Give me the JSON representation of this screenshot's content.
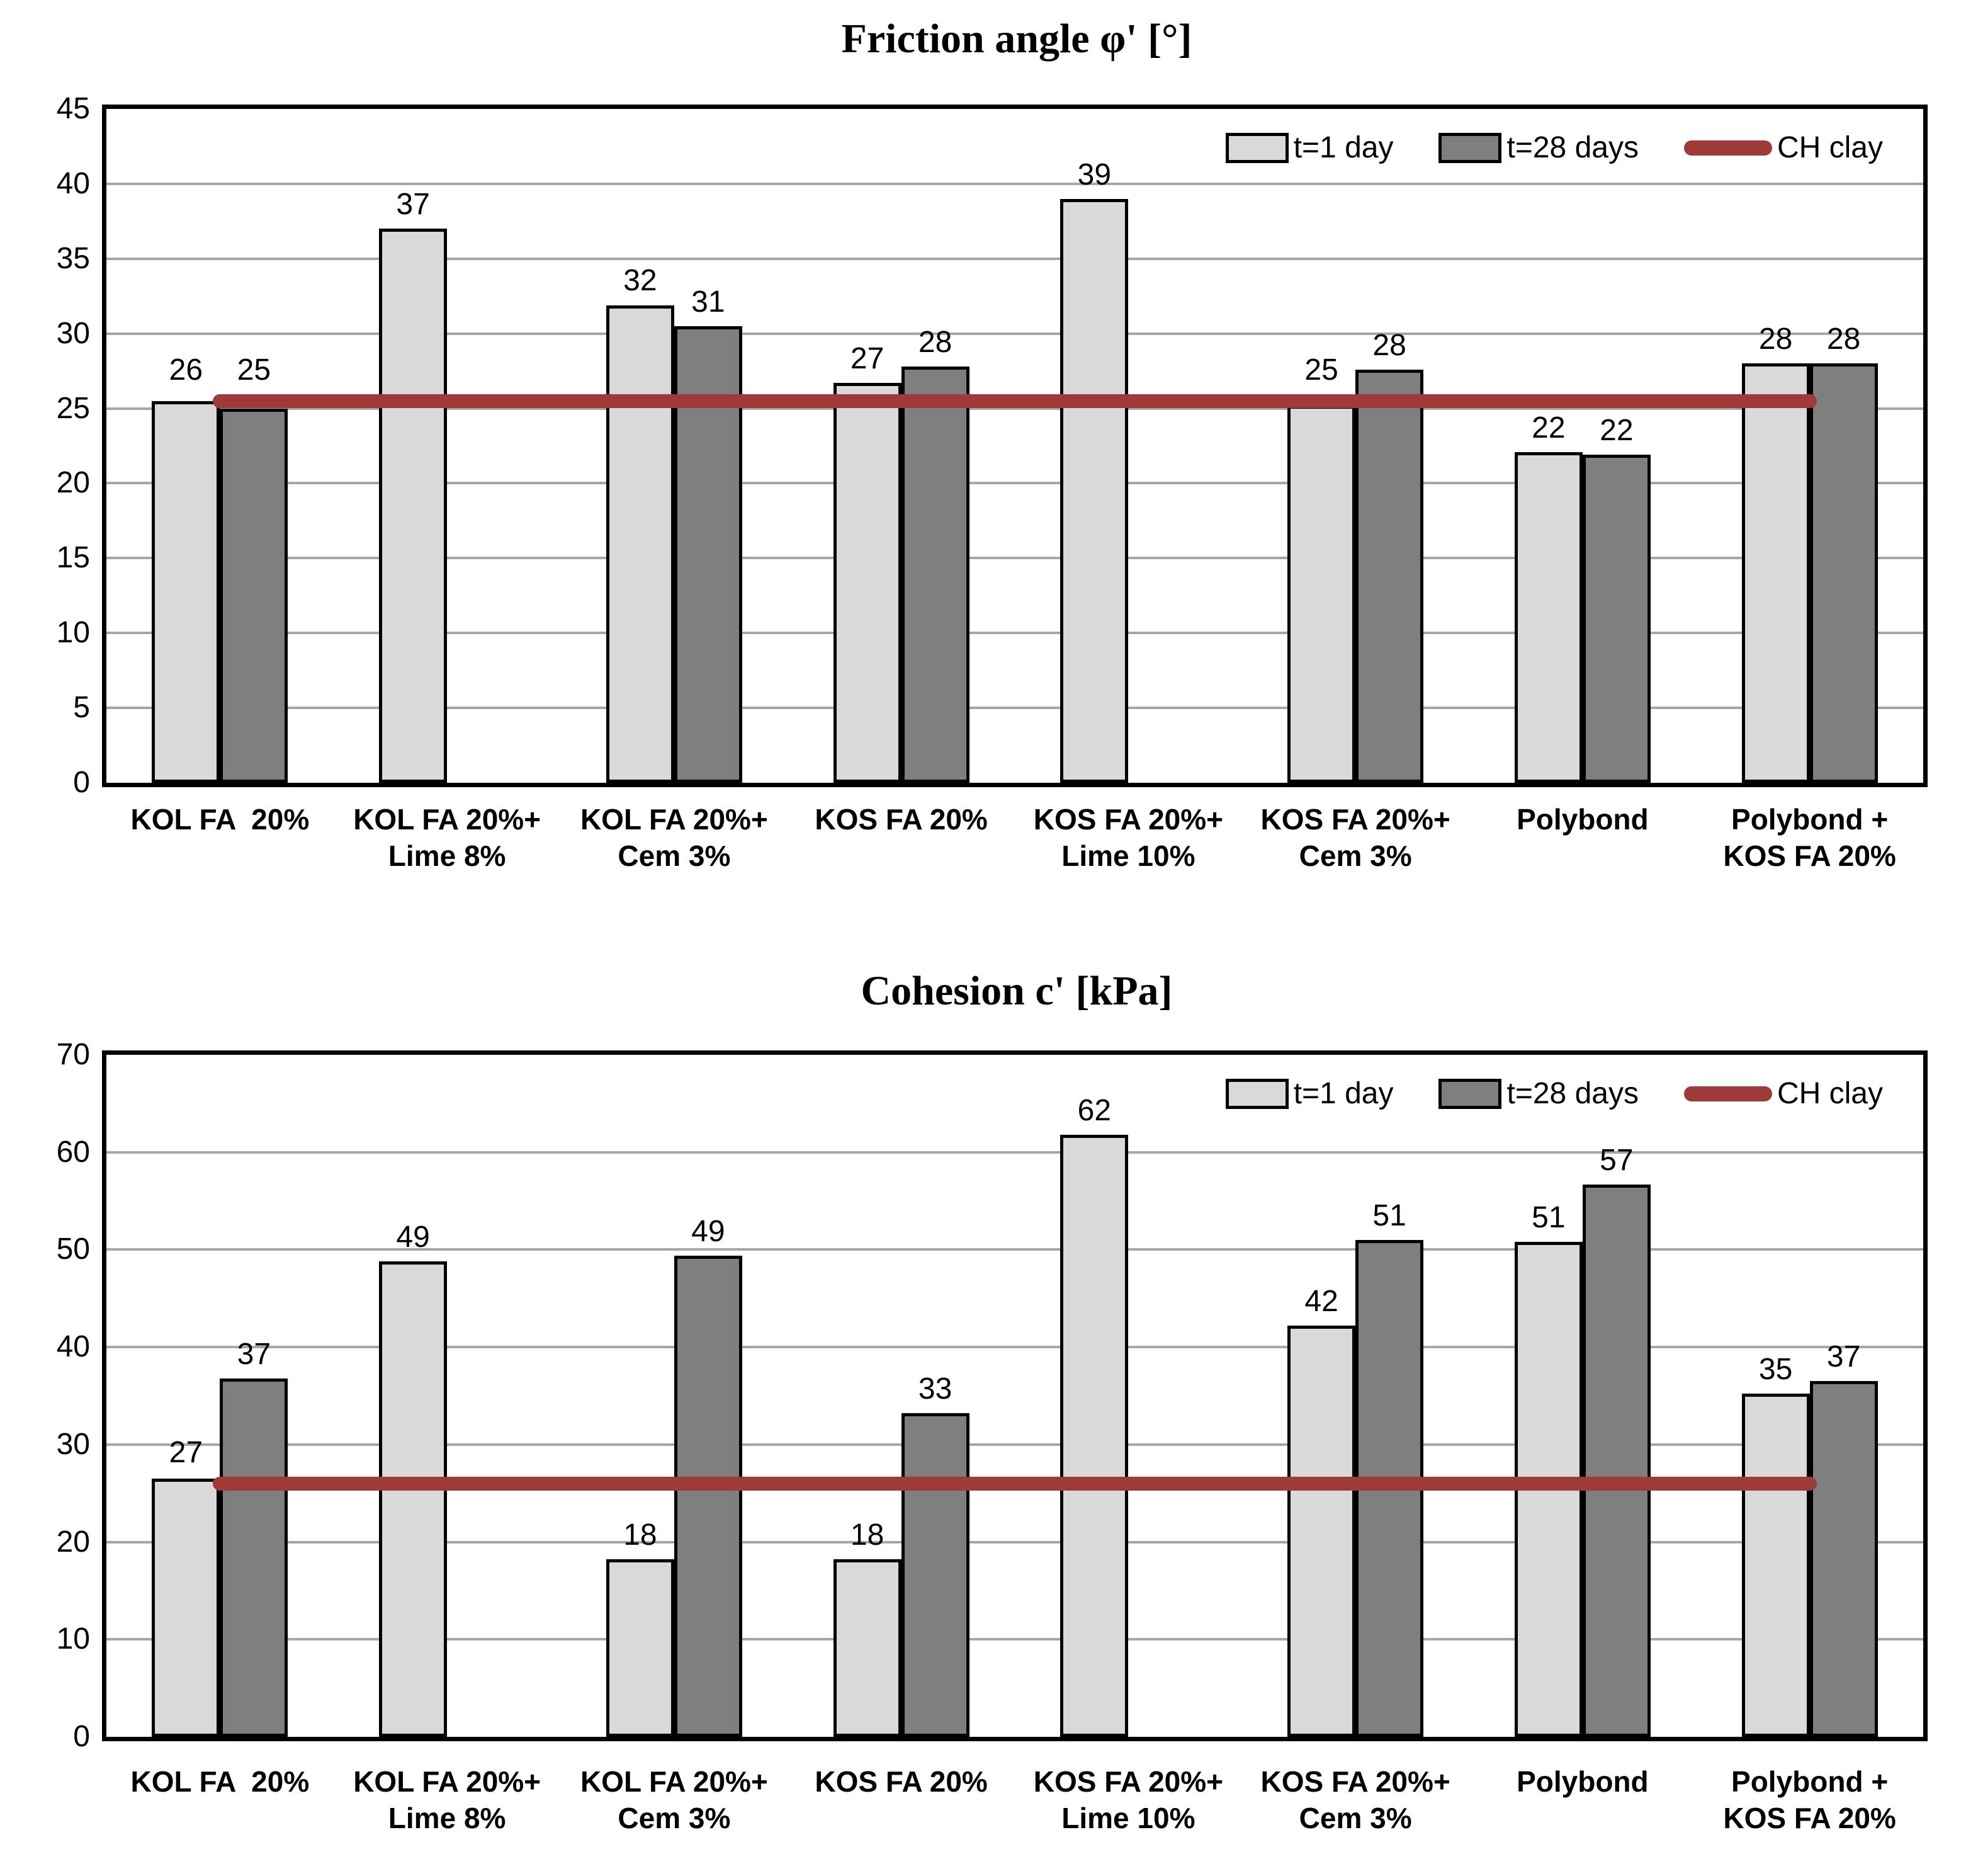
{
  "colors": {
    "bar_t1_day": "#D9D9D9",
    "bar_t28_days": "#7F7F7F",
    "ch_clay_line": "#9E3A38",
    "gridline": "#A6A6A6",
    "axis": "#000000"
  },
  "categories": [
    "KOL FA  20%",
    "KOL FA 20%+\nLime 8%",
    "KOL FA 20%+\nCem 3%",
    "KOS FA 20%",
    "KOS FA 20%+\nLime 10%",
    "KOS FA 20%+\nCem 3%",
    "Polybond",
    "Polybond +\nKOS FA 20%"
  ],
  "chart_data": [
    {
      "type": "bar",
      "title": "Friction angle φ'  [°]",
      "ylim": [
        0,
        45
      ],
      "ytick_step": 5,
      "grid": true,
      "legend_position": "top-right-inside",
      "categories": [
        "KOL FA  20%",
        "KOL FA 20%+ Lime 8%",
        "KOL FA 20%+ Cem 3%",
        "KOS FA 20%",
        "KOS FA 20%+ Lime 10%",
        "KOS FA 20%+ Cem 3%",
        "Polybond",
        "Polybond + KOS FA 20%"
      ],
      "series": [
        {
          "name": "t=1 day",
          "values": [
            26,
            37,
            32,
            27,
            39,
            25,
            22,
            28
          ],
          "heights": [
            25.5,
            37,
            31.9,
            26.7,
            39,
            25.2,
            22.1,
            28
          ]
        },
        {
          "name": "t=28 days",
          "values": [
            25,
            null,
            31,
            28,
            null,
            28,
            22,
            28
          ],
          "heights": [
            25,
            null,
            30.5,
            27.8,
            null,
            27.6,
            21.9,
            28
          ]
        }
      ],
      "ref_line": {
        "name": "CH clay",
        "value": 25.5
      }
    },
    {
      "type": "bar",
      "title": "Cohesion c' [kPa]",
      "ylim": [
        0,
        70
      ],
      "ytick_step": 10,
      "grid": true,
      "legend_position": "top-right-inside",
      "categories": [
        "KOL FA  20%",
        "KOL FA 20%+ Lime 8%",
        "KOL FA 20%+ Cem 3%",
        "KOS FA 20%",
        "KOS FA 20%+ Lime 10%",
        "KOS FA 20%+ Cem 3%",
        "Polybond",
        "Polybond + KOS FA 20%"
      ],
      "series": [
        {
          "name": "t=1 day",
          "values": [
            27,
            49,
            18,
            18,
            62,
            42,
            51,
            35
          ],
          "heights": [
            26.5,
            48.8,
            18.2,
            18.2,
            61.8,
            42.2,
            50.8,
            35.2
          ]
        },
        {
          "name": "t=28 days",
          "values": [
            37,
            null,
            49,
            33,
            null,
            51,
            57,
            37
          ],
          "heights": [
            36.8,
            null,
            49.4,
            33.2,
            null,
            51,
            56.7,
            36.5
          ]
        }
      ],
      "ref_line": {
        "name": "CH clay",
        "value": 26
      }
    }
  ]
}
